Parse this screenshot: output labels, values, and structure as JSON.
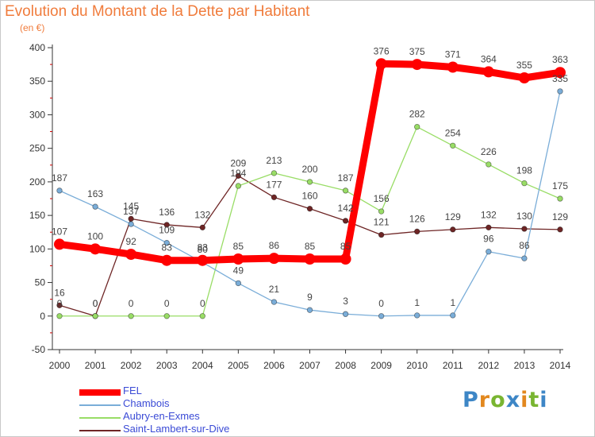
{
  "header": {
    "title": "Evolution du Montant de la Dette par Habitant",
    "subtitle": "(en €)"
  },
  "logo": {
    "text": "Proxiti",
    "letter_colors": [
      "#3d86c6",
      "#e2881f",
      "#79b531",
      "#3d86c6",
      "#e2881f",
      "#79b531",
      "#3d86c6"
    ]
  },
  "chart_data": {
    "type": "line",
    "title": "Evolution du Montant de la Dette par Habitant",
    "subtitle": "(en €)",
    "x": [
      2000,
      2001,
      2002,
      2003,
      2004,
      2005,
      2006,
      2007,
      2008,
      2009,
      2010,
      2011,
      2012,
      2013,
      2014
    ],
    "ylim": [
      -50,
      400
    ],
    "yticks": [
      -50,
      0,
      50,
      100,
      150,
      200,
      250,
      300,
      350,
      400
    ],
    "grid": false,
    "legend_position": "bottom-left",
    "series": [
      {
        "name": "FEL",
        "color": "#ff0000",
        "style": "thick",
        "values": [
          107,
          100,
          92,
          83,
          83,
          85,
          86,
          85,
          85,
          376,
          375,
          371,
          364,
          355,
          363
        ]
      },
      {
        "name": "Chambois",
        "color": "#7aadd8",
        "style": "thin",
        "values": [
          187,
          163,
          137,
          109,
          80,
          49,
          21,
          9,
          3,
          0,
          1,
          1,
          96,
          86,
          335
        ]
      },
      {
        "name": "Aubry-en-Exmes",
        "color": "#99dd66",
        "style": "thin",
        "values": [
          0,
          0,
          0,
          0,
          0,
          194,
          213,
          200,
          187,
          156,
          282,
          254,
          226,
          198,
          175
        ]
      },
      {
        "name": "Saint-Lambert-sur-Dive",
        "color": "#6e2525",
        "style": "thin",
        "values": [
          16,
          0,
          145,
          136,
          132,
          209,
          177,
          160,
          142,
          121,
          126,
          129,
          132,
          130,
          129
        ]
      }
    ]
  }
}
